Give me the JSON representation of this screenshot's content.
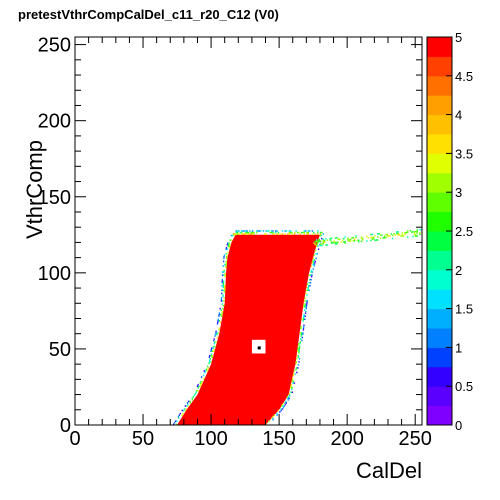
{
  "chart_data": {
    "type": "heatmap",
    "title": "pretestVthrCompCalDel_c11_r20_C12 (V0)",
    "xlabel": "CalDel",
    "ylabel": "VthrComp",
    "xlim": [
      0,
      255
    ],
    "ylim": [
      0,
      255
    ],
    "x_ticks": [
      0,
      50,
      100,
      150,
      200,
      250
    ],
    "y_ticks": [
      0,
      50,
      100,
      150,
      200,
      250
    ],
    "zlim": [
      0,
      5
    ],
    "z_ticks": [
      "0",
      "0.5",
      "1",
      "1.5",
      "2",
      "2.5",
      "3",
      "3.5",
      "4",
      "4.5",
      "5"
    ],
    "palette": [
      "#7f00ff",
      "#5a00ff",
      "#3300ff",
      "#0040ff",
      "#0080ff",
      "#00b0ff",
      "#00e0ff",
      "#00ffd0",
      "#00ff90",
      "#00ff40",
      "#20ff00",
      "#60ff00",
      "#a0ff00",
      "#e0ff00",
      "#ffe000",
      "#ffc000",
      "#ffa000",
      "#ff7000",
      "#ff4000",
      "#ff0000"
    ],
    "region": {
      "value": 5,
      "left_edge": [
        [
          0,
          75
        ],
        [
          10,
          82
        ],
        [
          20,
          90
        ],
        [
          40,
          100
        ],
        [
          60,
          106
        ],
        [
          80,
          110
        ],
        [
          100,
          111
        ],
        [
          110,
          112
        ],
        [
          120,
          115
        ],
        [
          125,
          118
        ]
      ],
      "right_edge": [
        [
          0,
          140
        ],
        [
          10,
          150
        ],
        [
          20,
          157
        ],
        [
          40,
          162
        ],
        [
          60,
          165
        ],
        [
          80,
          168
        ],
        [
          100,
          172
        ],
        [
          110,
          175
        ],
        [
          120,
          178
        ],
        [
          125,
          180
        ]
      ],
      "hole": {
        "x": [
          130,
          140
        ],
        "y": [
          47,
          56
        ],
        "center": [
          135,
          51
        ]
      },
      "tail": {
        "x_from": 175,
        "x_to": 255,
        "y_from": 119,
        "y_to": 126
      }
    },
    "grid": false,
    "legend": "none"
  }
}
